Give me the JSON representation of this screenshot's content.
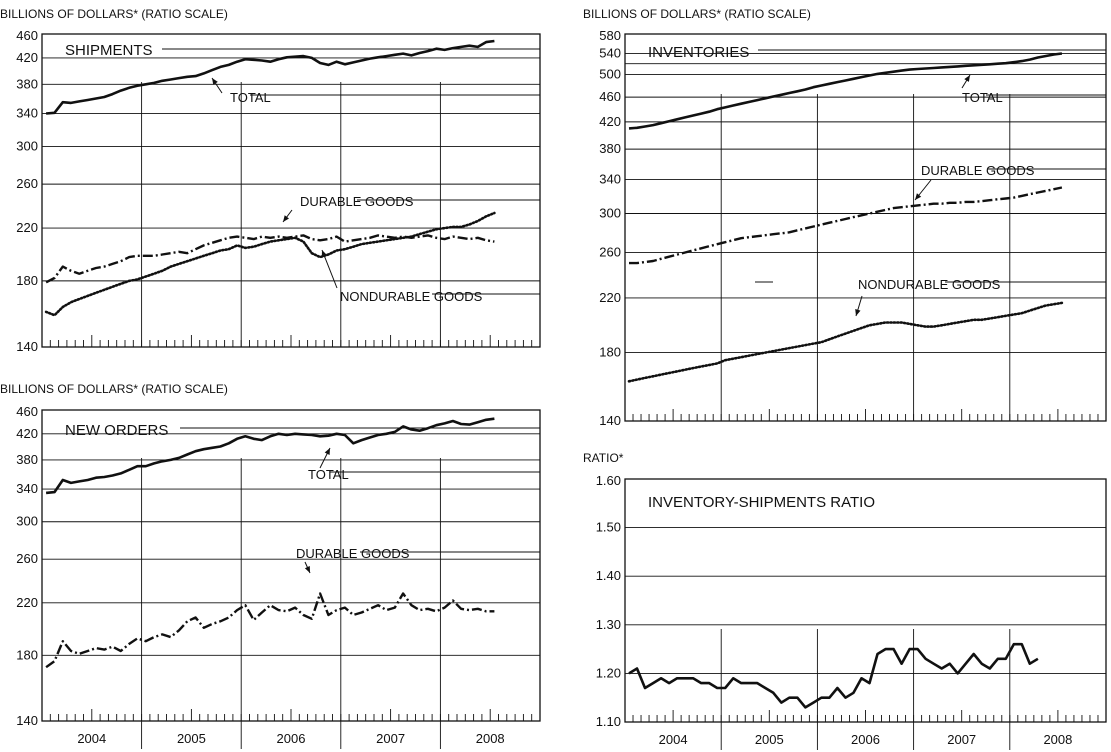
{
  "chart_data": [
    {
      "id": "shipments",
      "type": "line",
      "scale": "log",
      "ylabel": "BILLIONS OF DOLLARS* (RATIO SCALE)",
      "title": "SHIPMENTS",
      "ylim": [
        140,
        460
      ],
      "yticks": [
        "460",
        "420",
        "380",
        "340",
        "300",
        "260",
        "220",
        "180",
        "140"
      ],
      "xlabels": [
        "2004",
        "2005",
        "2006",
        "2007",
        "2008"
      ],
      "start": "2004-01",
      "annotations": [
        "TOTAL",
        "DURABLE GOODS",
        "NONDURABLE GOODS"
      ],
      "series": [
        {
          "name": "TOTAL",
          "style": "solid",
          "values": [
            340,
            341,
            355,
            354,
            356,
            358,
            360,
            362,
            366,
            371,
            375,
            378,
            380,
            382,
            385,
            387,
            389,
            391,
            392,
            396,
            401,
            406,
            409,
            414,
            418,
            417,
            416,
            414,
            418,
            421,
            422,
            423,
            420,
            412,
            409,
            414,
            410,
            413,
            416,
            419,
            421,
            423,
            425,
            427,
            424,
            428,
            431,
            435,
            433,
            436,
            438,
            440,
            438,
            446,
            448
          ]
        },
        {
          "name": "DURABLE GOODS",
          "style": "dashdot",
          "values": [
            179,
            182,
            190,
            187,
            185,
            187,
            189,
            190,
            192,
            194,
            197,
            198,
            198,
            198,
            199,
            200,
            201,
            200,
            203,
            206,
            208,
            210,
            212,
            213,
            212,
            211,
            213,
            212,
            213,
            212,
            213,
            214,
            211,
            210,
            211,
            213,
            209,
            210,
            211,
            212,
            214,
            213,
            212,
            213,
            212,
            213,
            214,
            212,
            211,
            213,
            212,
            211,
            212,
            210,
            209
          ]
        },
        {
          "name": "NONDURABLE GOODS",
          "style": "dotted",
          "values": [
            160,
            158,
            163,
            166,
            168,
            170,
            172,
            174,
            176,
            178,
            180,
            181,
            183,
            185,
            187,
            190,
            192,
            194,
            196,
            198,
            200,
            202,
            203,
            206,
            204,
            205,
            207,
            209,
            210,
            211,
            212,
            209,
            200,
            197,
            199,
            202,
            203,
            205,
            207,
            208,
            209,
            210,
            211,
            212,
            213,
            215,
            217,
            219,
            220,
            221,
            221,
            223,
            226,
            230,
            233
          ]
        }
      ]
    },
    {
      "id": "new-orders",
      "type": "line",
      "scale": "log",
      "ylabel": "BILLIONS OF DOLLARS* (RATIO SCALE)",
      "title": "NEW ORDERS",
      "ylim": [
        140,
        460
      ],
      "yticks": [
        "460",
        "420",
        "380",
        "340",
        "300",
        "260",
        "220",
        "180",
        "140"
      ],
      "xlabels": [
        "2004",
        "2005",
        "2006",
        "2007",
        "2008"
      ],
      "start": "2004-01",
      "annotations": [
        "TOTAL",
        "DURABLE GOODS"
      ],
      "series": [
        {
          "name": "TOTAL",
          "style": "solid",
          "values": [
            335,
            336,
            352,
            348,
            350,
            352,
            355,
            356,
            358,
            361,
            366,
            371,
            371,
            375,
            378,
            380,
            383,
            388,
            393,
            396,
            398,
            400,
            405,
            412,
            416,
            412,
            410,
            416,
            420,
            418,
            420,
            419,
            418,
            416,
            417,
            420,
            418,
            405,
            410,
            414,
            418,
            420,
            423,
            432,
            427,
            425,
            429,
            434,
            437,
            441,
            436,
            435,
            439,
            443,
            445
          ]
        },
        {
          "name": "DURABLE GOODS",
          "style": "dashdot",
          "values": [
            172,
            176,
            190,
            183,
            181,
            183,
            185,
            184,
            186,
            183,
            188,
            192,
            190,
            193,
            195,
            193,
            198,
            205,
            208,
            200,
            203,
            205,
            208,
            214,
            218,
            206,
            212,
            218,
            214,
            213,
            216,
            210,
            207,
            228,
            210,
            214,
            216,
            210,
            212,
            215,
            218,
            214,
            216,
            228,
            218,
            214,
            215,
            213,
            216,
            222,
            215,
            214,
            215,
            213,
            213
          ]
        }
      ]
    },
    {
      "id": "inventories",
      "type": "line",
      "scale": "log",
      "ylabel": "BILLIONS OF DOLLARS* (RATIO SCALE)",
      "title": "INVENTORIES",
      "ylim": [
        140,
        580
      ],
      "yticks": [
        "580",
        "540",
        "500",
        "460",
        "420",
        "380",
        "340",
        "300",
        "260",
        "220",
        "180",
        "140"
      ],
      "yticks_extra": [
        "520"
      ],
      "xlabels": [
        "2004",
        "2005",
        "2006",
        "2007",
        "2008"
      ],
      "start": "2004-01",
      "annotations": [
        "TOTAL",
        "DURABLE GOODS",
        "NONDURABLE GOODS"
      ],
      "series": [
        {
          "name": "TOTAL",
          "style": "solid",
          "values": [
            410,
            411,
            413,
            415,
            418,
            421,
            424,
            427,
            430,
            433,
            436,
            440,
            443,
            446,
            449,
            452,
            455,
            458,
            461,
            464,
            467,
            470,
            473,
            477,
            480,
            483,
            486,
            489,
            492,
            495,
            498,
            501,
            503,
            505,
            507,
            509,
            510,
            511,
            512,
            513,
            514,
            515,
            516,
            517,
            518,
            519,
            520,
            521,
            523,
            525,
            528,
            532,
            535,
            538,
            540
          ]
        },
        {
          "name": "DURABLE GOODS",
          "style": "dashdot",
          "values": [
            250,
            250,
            251,
            252,
            254,
            256,
            258,
            260,
            262,
            264,
            266,
            268,
            270,
            272,
            274,
            275,
            276,
            277,
            278,
            279,
            280,
            282,
            284,
            286,
            288,
            290,
            292,
            294,
            296,
            298,
            300,
            302,
            304,
            306,
            307,
            308,
            309,
            310,
            311,
            311,
            312,
            312,
            313,
            313,
            314,
            315,
            316,
            317,
            318,
            320,
            322,
            324,
            326,
            328,
            330
          ]
        },
        {
          "name": "NONDURABLE GOODS",
          "style": "dotted",
          "values": [
            162,
            163,
            164,
            165,
            166,
            167,
            168,
            169,
            170,
            171,
            172,
            173,
            175,
            176,
            177,
            178,
            179,
            180,
            181,
            182,
            183,
            184,
            185,
            186,
            187,
            189,
            191,
            193,
            195,
            197,
            199,
            200,
            201,
            201,
            201,
            200,
            199,
            198,
            198,
            199,
            200,
            201,
            202,
            203,
            203,
            204,
            205,
            206,
            207,
            208,
            210,
            212,
            214,
            215,
            216
          ]
        }
      ]
    },
    {
      "id": "inventory-shipments-ratio",
      "type": "line",
      "scale": "linear",
      "ylabel": "RATIO*",
      "title": "INVENTORY-SHIPMENTS RATIO",
      "ylim": [
        1.1,
        1.6
      ],
      "yticks": [
        "1.60",
        "1.50",
        "1.40",
        "1.30",
        "1.20",
        "1.10"
      ],
      "xlabels": [
        "2004",
        "2005",
        "2006",
        "2007",
        "2008"
      ],
      "start": "2004-01",
      "series": [
        {
          "name": "",
          "style": "solid",
          "values": [
            1.2,
            1.21,
            1.17,
            1.18,
            1.19,
            1.18,
            1.19,
            1.19,
            1.19,
            1.18,
            1.18,
            1.17,
            1.17,
            1.19,
            1.18,
            1.18,
            1.18,
            1.17,
            1.16,
            1.14,
            1.15,
            1.15,
            1.13,
            1.14,
            1.15,
            1.15,
            1.17,
            1.15,
            1.16,
            1.19,
            1.18,
            1.24,
            1.25,
            1.25,
            1.22,
            1.25,
            1.25,
            1.23,
            1.22,
            1.21,
            1.22,
            1.2,
            1.22,
            1.24,
            1.22,
            1.21,
            1.23,
            1.23,
            1.26,
            1.26,
            1.22,
            1.23
          ]
        }
      ]
    }
  ]
}
